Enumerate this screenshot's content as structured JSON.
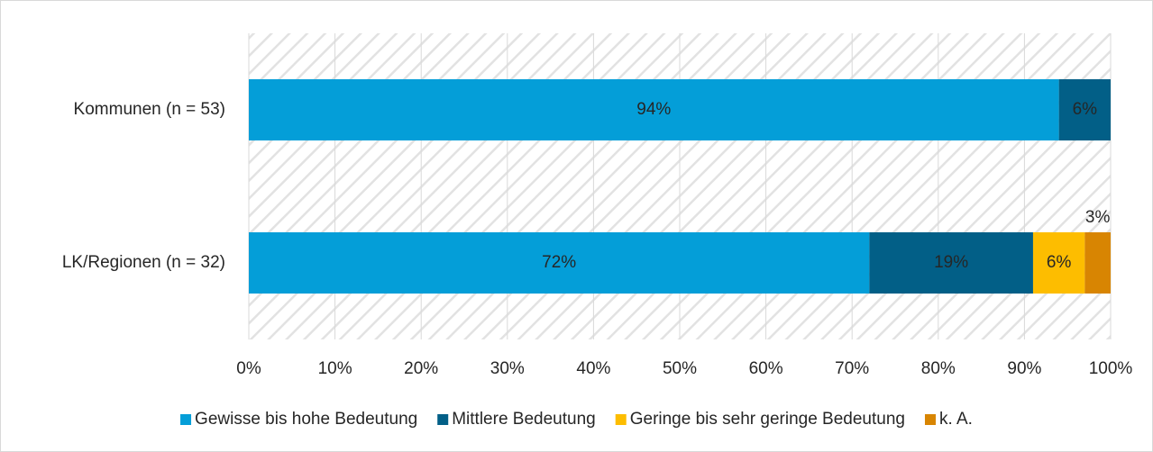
{
  "chart_data": {
    "type": "stacked-barh",
    "categories": [
      "Kommunen (n = 53)",
      "LK/Regionen (n = 32)"
    ],
    "series": [
      {
        "name": "Gewisse bis hohe Bedeutung",
        "color": "#049ed8",
        "values": [
          94,
          72
        ],
        "value_labels": [
          "94%",
          "72%"
        ]
      },
      {
        "name": "Mittlere Bedeutung",
        "color": "#025f87",
        "values": [
          6,
          19
        ],
        "value_labels": [
          "6%",
          "19%"
        ]
      },
      {
        "name": "Geringe bis sehr geringe Bedeutung",
        "color": "#fdbd00",
        "values": [
          null,
          6
        ],
        "value_labels": [
          null,
          "6%"
        ]
      },
      {
        "name": "k. A.",
        "color": "#d88502",
        "values": [
          null,
          3
        ],
        "value_labels": [
          null,
          "3%"
        ]
      }
    ],
    "xlim": [
      0,
      100
    ],
    "xticks": [
      {
        "value": 0,
        "label": "0%"
      },
      {
        "value": 10,
        "label": "10%"
      },
      {
        "value": 20,
        "label": "20%"
      },
      {
        "value": 30,
        "label": "30%"
      },
      {
        "value": 40,
        "label": "40%"
      },
      {
        "value": 50,
        "label": "50%"
      },
      {
        "value": 60,
        "label": "60%"
      },
      {
        "value": 70,
        "label": "70%"
      },
      {
        "value": 80,
        "label": "80%"
      },
      {
        "value": 90,
        "label": "90%"
      },
      {
        "value": 100,
        "label": "100%"
      }
    ],
    "grid": true,
    "legend": "bottom"
  }
}
